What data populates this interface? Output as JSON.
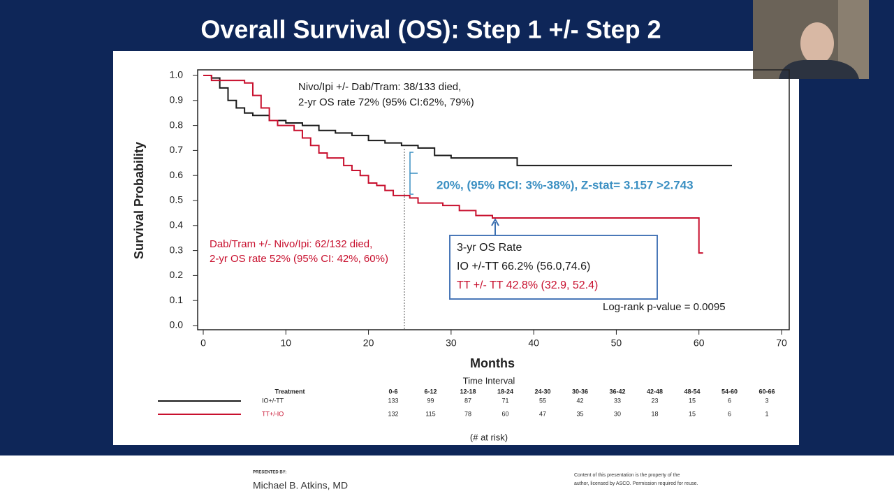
{
  "slide": {
    "title": "Overall Survival (OS): Step 1 +/- Step 2",
    "presented_by": "PRESENTED BY:",
    "presenter": "Michael B. Atkins, MD",
    "copyright": [
      "Content of this presentation is the property of the",
      "author, licensed by ASCO. Permission required for reuse."
    ]
  },
  "chart_data": {
    "type": "line",
    "step": true,
    "x_label": "Months",
    "y_label": "Survival Probability",
    "xlim": [
      0,
      70
    ],
    "xticks": [
      0,
      10,
      20,
      30,
      40,
      50,
      60,
      70
    ],
    "ylim": [
      0,
      1
    ],
    "yticks": [
      {
        "value": 0,
        "label": "0.0"
      },
      0.1,
      0.2,
      0.3,
      0.4,
      0.5,
      0.6,
      0.7,
      0.8,
      0.9,
      {
        "value": 1,
        "label": "1.0"
      }
    ],
    "series": [
      {
        "name": "IO+/-TT",
        "color": "#1a1a1a",
        "x": [
          0,
          1,
          2,
          3,
          4,
          5,
          6,
          8,
          10,
          12,
          14,
          16,
          18,
          20,
          22,
          24,
          26,
          28,
          30,
          34,
          38,
          64
        ],
        "values": [
          1.0,
          0.99,
          0.95,
          0.9,
          0.87,
          0.85,
          0.84,
          0.82,
          0.81,
          0.8,
          0.78,
          0.77,
          0.76,
          0.74,
          0.73,
          0.72,
          0.71,
          0.68,
          0.67,
          0.67,
          0.64,
          0.64
        ]
      },
      {
        "name": "TT+/-IO",
        "color": "#c8102e",
        "x": [
          0,
          1,
          3,
          5,
          6,
          7,
          8,
          9,
          11,
          12,
          13,
          14,
          15,
          17,
          18,
          19,
          20,
          21,
          22,
          23,
          25,
          26,
          29,
          31,
          33,
          35,
          59.5,
          60,
          60.5
        ],
        "values": [
          1.0,
          0.98,
          0.98,
          0.97,
          0.92,
          0.87,
          0.82,
          0.8,
          0.78,
          0.75,
          0.72,
          0.69,
          0.67,
          0.64,
          0.62,
          0.6,
          0.57,
          0.56,
          0.54,
          0.52,
          0.51,
          0.49,
          0.48,
          0.46,
          0.44,
          0.43,
          0.43,
          0.29,
          0.29
        ]
      }
    ],
    "annotations": [
      {
        "text": "Nivo/Ipi +/- Dab/Tram: 38/133 died,",
        "color": "#1a1a1a"
      },
      {
        "text": "2-yr OS rate 72% (95% CI:62%, 79%)",
        "color": "#1a1a1a"
      },
      {
        "text": "20%, (95% RCI: 3%-38%),  Z-stat= 3.157 >2.743",
        "color": "#3a8fc2"
      },
      {
        "text": "Dab/Tram +/- Nivo/Ipi: 62/132 died,",
        "color": "#c8102e"
      },
      {
        "text": "2-yr OS rate 52% (95% CI: 42%, 60%)",
        "color": "#c8102e"
      },
      {
        "text": "3-yr OS Rate",
        "color": "#1a1a1a"
      },
      {
        "text": "IO +/-TT   66.2% (56.0,74.6)",
        "color": "#1a1a1a"
      },
      {
        "text": "TT +/- TT 42.8% (32.9, 52.4)",
        "color": "#c8102e"
      },
      {
        "text": "Log-rank p-value = 0.0095",
        "color": "#1a1a1a"
      }
    ],
    "risk_table": {
      "title": "Time Interval",
      "header": "Treatment",
      "footer": "(# at risk)",
      "intervals": [
        "0-6",
        "6-12",
        "12-18",
        "18-24",
        "24-30",
        "30-36",
        "36-42",
        "42-48",
        "48-54",
        "54-60",
        "60-66"
      ],
      "rows": [
        {
          "name": "IO+/-TT",
          "values": [
            133,
            99,
            87,
            71,
            55,
            42,
            33,
            23,
            15,
            6,
            3
          ]
        },
        {
          "name": "TT+/-IO",
          "values": [
            132,
            115,
            78,
            60,
            47,
            35,
            30,
            18,
            15,
            6,
            1
          ]
        }
      ]
    }
  }
}
